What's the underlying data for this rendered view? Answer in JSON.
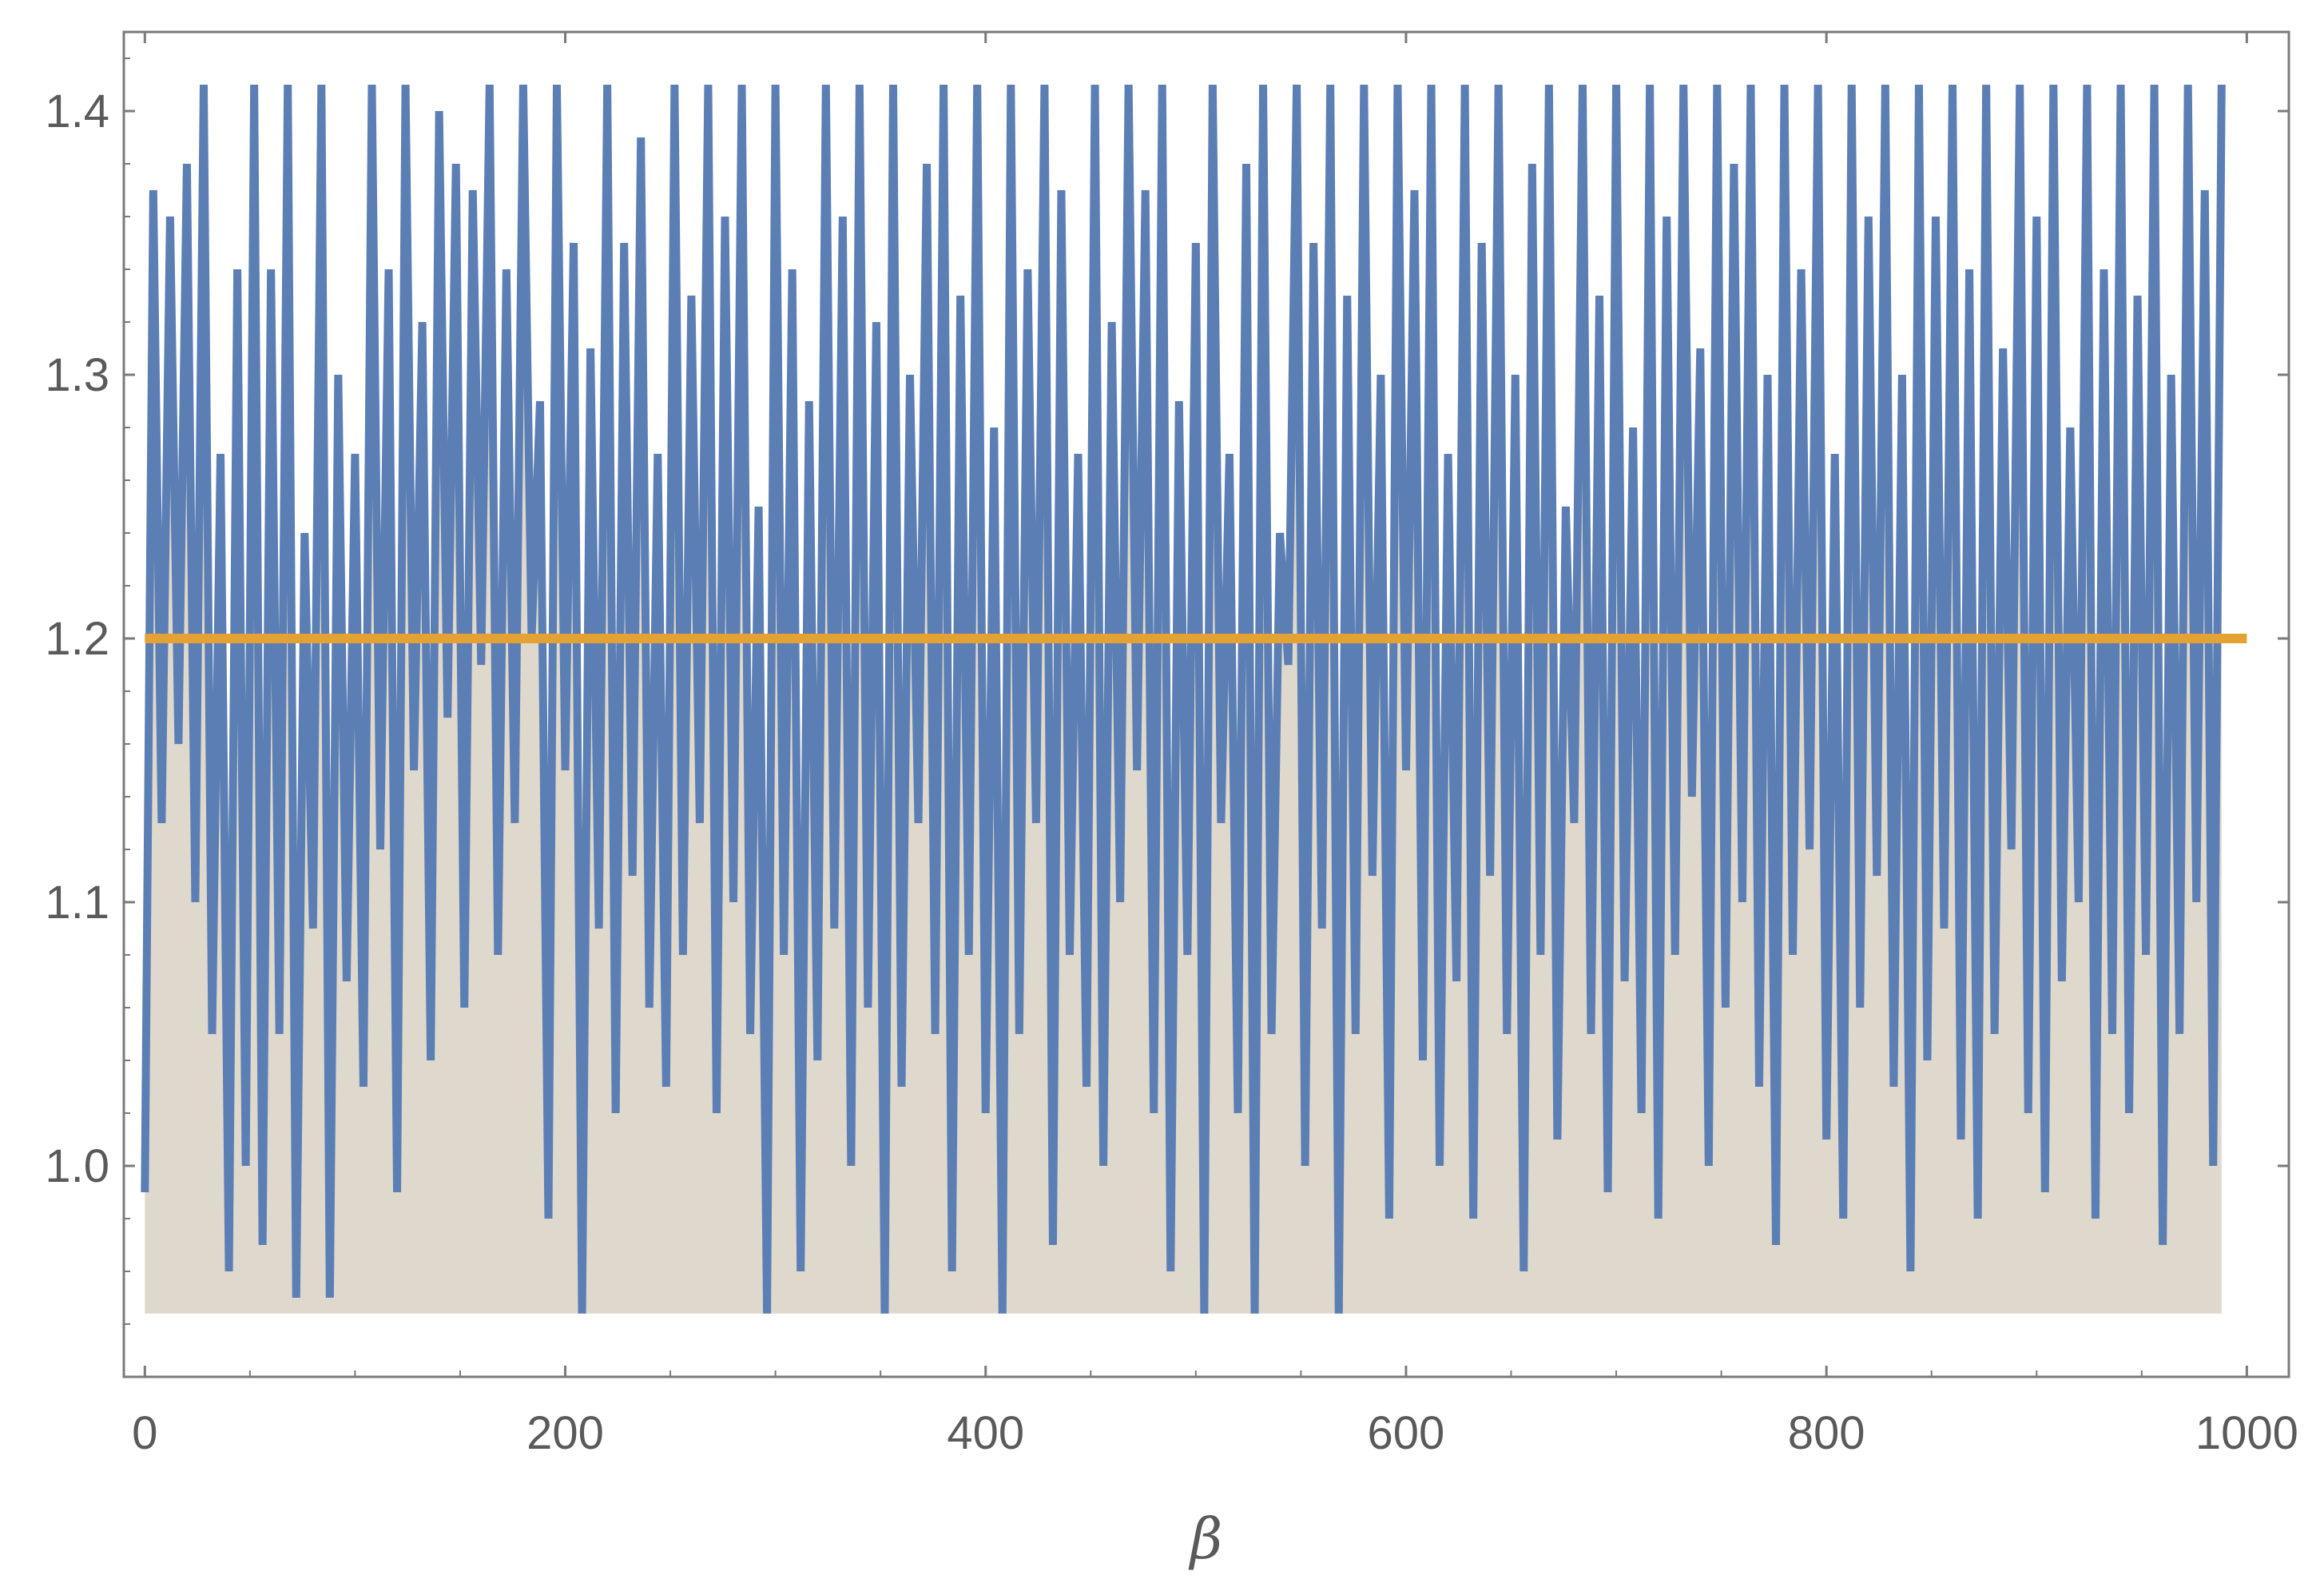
{
  "chart_data": {
    "type": "line",
    "title": "",
    "xlabel": "β",
    "ylabel": "",
    "xlim": [
      -10,
      1020
    ],
    "ylim": [
      0.92,
      1.43
    ],
    "x_ticks": [
      0,
      200,
      400,
      600,
      800,
      1000
    ],
    "x_tick_labels": [
      "0",
      "200",
      "400",
      "600",
      "800",
      "1000"
    ],
    "y_ticks": [
      1.0,
      1.1,
      1.2,
      1.3,
      1.4
    ],
    "y_tick_labels": [
      "1.0",
      "1.1",
      "1.2",
      "1.3",
      "1.4"
    ],
    "grid": false,
    "legend": "none",
    "fill_baseline": 0.944,
    "clip_range": [
      0.944,
      1.414
    ],
    "colors": {
      "series_line": "#5b7fb4",
      "fill": "#dfd8cc",
      "reference_line": "#e3a233",
      "frame": "#7a7a7a"
    },
    "series": [
      {
        "type": "line",
        "x_start": 0,
        "x_step": 4,
        "values": [
          0.99,
          1.37,
          1.13,
          1.36,
          1.16,
          1.38,
          1.1,
          1.41,
          1.05,
          1.27,
          0.96,
          1.34,
          1.0,
          1.41,
          0.97,
          1.34,
          1.05,
          1.41,
          0.95,
          1.24,
          1.09,
          1.41,
          0.95,
          1.3,
          1.07,
          1.27,
          1.03,
          1.41,
          1.12,
          1.34,
          0.99,
          1.41,
          1.15,
          1.32,
          1.04,
          1.4,
          1.17,
          1.38,
          1.06,
          1.37,
          1.19,
          1.41,
          1.08,
          1.34,
          1.13,
          1.41,
          1.2,
          1.29,
          0.98,
          1.41,
          1.15,
          1.35,
          0.94,
          1.31,
          1.09,
          1.41,
          1.02,
          1.35,
          1.11,
          1.39,
          1.06,
          1.27,
          1.03,
          1.41,
          1.08,
          1.33,
          1.13,
          1.41,
          1.02,
          1.36,
          1.1,
          1.41,
          1.05,
          1.25,
          0.94,
          1.41,
          1.08,
          1.34,
          0.96,
          1.29,
          1.04,
          1.41,
          1.09,
          1.36,
          1.0,
          1.41,
          1.06,
          1.32,
          0.94,
          1.41,
          1.03,
          1.3,
          1.13,
          1.38,
          1.05,
          1.41,
          0.96,
          1.33,
          1.08,
          1.41,
          1.02,
          1.28,
          0.94,
          1.41,
          1.05,
          1.34,
          1.13,
          1.41,
          0.97,
          1.37,
          1.08,
          1.27,
          1.03,
          1.41,
          1.0,
          1.32,
          1.1,
          1.41,
          1.15,
          1.37,
          1.02,
          1.41,
          0.96,
          1.29,
          1.08,
          1.35,
          0.94,
          1.41,
          1.13,
          1.27,
          1.02,
          1.38,
          0.94,
          1.41,
          1.05,
          1.24,
          1.19,
          1.41,
          1.0,
          1.35,
          1.09,
          1.41,
          0.94,
          1.33,
          1.05,
          1.41,
          1.11,
          1.3,
          0.98,
          1.41,
          1.15,
          1.37,
          1.04,
          1.41,
          1.0,
          1.27,
          1.07,
          1.41,
          0.98,
          1.35,
          1.11,
          1.41,
          1.05,
          1.3,
          0.96,
          1.38,
          1.08,
          1.41,
          1.01,
          1.25,
          1.13,
          1.41,
          1.05,
          1.33,
          0.99,
          1.41,
          1.07,
          1.28,
          1.02,
          1.41,
          0.98,
          1.36,
          1.08,
          1.41,
          1.14,
          1.31,
          1.0,
          1.41,
          1.06,
          1.38,
          1.1,
          1.41,
          1.03,
          1.3,
          0.97,
          1.41,
          1.08,
          1.34,
          1.12,
          1.41,
          1.01,
          1.27,
          0.98,
          1.41,
          1.06,
          1.36,
          1.11,
          1.41,
          1.03,
          1.3,
          0.96,
          1.41,
          1.04,
          1.36,
          1.09,
          1.41,
          1.01,
          1.34,
          0.98,
          1.41,
          1.05,
          1.31,
          1.12,
          1.41,
          1.02,
          1.36,
          0.99,
          1.41,
          1.07,
          1.28,
          1.1,
          1.41,
          0.98,
          1.34,
          1.05,
          1.41,
          1.02,
          1.33,
          1.08,
          1.41,
          0.97,
          1.3,
          1.05,
          1.41,
          1.1,
          1.37,
          1.0,
          1.41
        ]
      },
      {
        "type": "reference_line",
        "y": 1.2
      }
    ]
  }
}
